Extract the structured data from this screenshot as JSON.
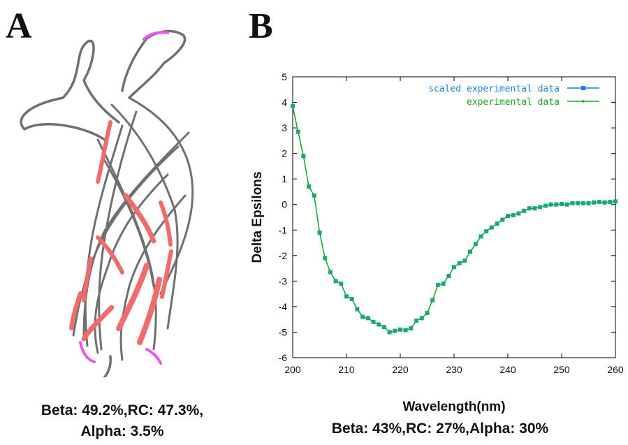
{
  "panel_a": {
    "letter": "A",
    "caption_line1": "Beta: 49.2%,RC: 47.3%,",
    "caption_line2": "Alpha: 3.5%"
  },
  "panel_b": {
    "letter": "B",
    "caption": "Beta: 43%,RC: 27%,Alpha: 30%"
  },
  "colors": {
    "scaled_series": "#1a7fd4",
    "experimental_series": "#1ea51e",
    "experimental_marker": "#1aa87a",
    "strand": "#f26b6b",
    "coil": "#707070",
    "turn": "#ee55ee"
  },
  "chart_data": {
    "type": "line",
    "xlabel": "Wavelength(nm)",
    "ylabel": "Delta Epsilons",
    "xlim": [
      200,
      260
    ],
    "ylim": [
      -6,
      5
    ],
    "xticks": [
      200,
      210,
      220,
      230,
      240,
      250,
      260
    ],
    "yticks": [
      -6,
      -5,
      -4,
      -3,
      -2,
      -1,
      0,
      1,
      2,
      3,
      4,
      5
    ],
    "legend_position": "top-right",
    "grid": false,
    "series": [
      {
        "name": "scaled experimental data",
        "marker": "square",
        "x": [
          200,
          201,
          202,
          203,
          204,
          205,
          206,
          207,
          208,
          209,
          210,
          211,
          212,
          213,
          214,
          215,
          216,
          217,
          218,
          219,
          220,
          221,
          222,
          223,
          224,
          225,
          226,
          227,
          228,
          229,
          230,
          231,
          232,
          233,
          234,
          235,
          236,
          237,
          238,
          239,
          240,
          241,
          242,
          243,
          244,
          245,
          246,
          247,
          248,
          249,
          250,
          251,
          252,
          253,
          254,
          255,
          256,
          257,
          258,
          259,
          260
        ],
        "y": [
          3.85,
          2.85,
          1.9,
          0.7,
          0.35,
          -1.1,
          -2.1,
          -2.65,
          -3.0,
          -3.1,
          -3.6,
          -3.7,
          -4.1,
          -4.4,
          -4.45,
          -4.6,
          -4.7,
          -4.8,
          -5.0,
          -4.95,
          -4.9,
          -4.92,
          -4.85,
          -4.55,
          -4.45,
          -4.25,
          -3.75,
          -3.15,
          -3.1,
          -2.8,
          -2.45,
          -2.3,
          -2.2,
          -1.85,
          -1.55,
          -1.25,
          -1.05,
          -0.9,
          -0.75,
          -0.6,
          -0.45,
          -0.42,
          -0.35,
          -0.25,
          -0.15,
          -0.15,
          -0.1,
          -0.05,
          0.0,
          0.0,
          0.02,
          0.0,
          0.05,
          0.05,
          0.05,
          0.05,
          0.08,
          0.1,
          0.08,
          0.1,
          0.12
        ]
      },
      {
        "name": "experimental data",
        "marker": "dot",
        "x": [
          200,
          201,
          202,
          203,
          204,
          205,
          206,
          207,
          208,
          209,
          210,
          211,
          212,
          213,
          214,
          215,
          216,
          217,
          218,
          219,
          220,
          221,
          222,
          223,
          224,
          225,
          226,
          227,
          228,
          229,
          230,
          231,
          232,
          233,
          234,
          235,
          236,
          237,
          238,
          239,
          240,
          241,
          242,
          243,
          244,
          245,
          246,
          247,
          248,
          249,
          250,
          251,
          252,
          253,
          254,
          255,
          256,
          257,
          258,
          259,
          260
        ],
        "y": [
          3.85,
          2.85,
          1.9,
          0.7,
          0.35,
          -1.1,
          -2.1,
          -2.65,
          -3.0,
          -3.1,
          -3.6,
          -3.7,
          -4.1,
          -4.4,
          -4.45,
          -4.6,
          -4.7,
          -4.8,
          -5.0,
          -4.95,
          -4.9,
          -4.92,
          -4.85,
          -4.55,
          -4.45,
          -4.25,
          -3.75,
          -3.15,
          -3.1,
          -2.8,
          -2.45,
          -2.3,
          -2.2,
          -1.85,
          -1.55,
          -1.25,
          -1.05,
          -0.9,
          -0.75,
          -0.6,
          -0.45,
          -0.42,
          -0.35,
          -0.25,
          -0.15,
          -0.15,
          -0.1,
          -0.05,
          0.0,
          0.0,
          0.02,
          0.0,
          0.05,
          0.05,
          0.05,
          0.05,
          0.08,
          0.1,
          0.08,
          0.1,
          0.12
        ]
      }
    ]
  }
}
